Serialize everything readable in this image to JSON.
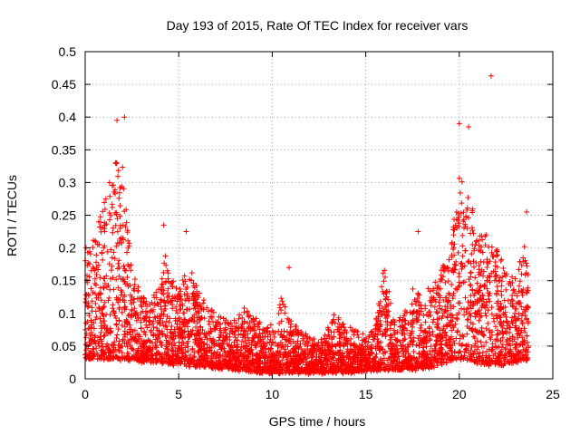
{
  "chart_data": {
    "type": "scatter",
    "title": "Day 193 of 2015, Rate Of TEC Index for receiver vars",
    "xlabel": "GPS time / hours",
    "ylabel": "ROTI / TECUs",
    "xlim": [
      0,
      25
    ],
    "ylim": [
      0,
      0.5
    ],
    "x_ticks": [
      "0",
      "5",
      "10",
      "15",
      "20",
      "25"
    ],
    "y_ticks": [
      "0",
      "0.05",
      "0.1",
      "0.15",
      "0.2",
      "0.25",
      "0.3",
      "0.35",
      "0.4",
      "0.45",
      "0.5"
    ],
    "grid": true,
    "marker": "plus",
    "marker_color": "#ff0000",
    "notable_points": [
      {
        "x": 2.1,
        "y": 0.4
      },
      {
        "x": 1.7,
        "y": 0.395
      },
      {
        "x": 4.2,
        "y": 0.235
      },
      {
        "x": 5.4,
        "y": 0.225
      },
      {
        "x": 10.9,
        "y": 0.17
      },
      {
        "x": 17.8,
        "y": 0.225
      },
      {
        "x": 20.0,
        "y": 0.39
      },
      {
        "x": 20.5,
        "y": 0.385
      },
      {
        "x": 21.7,
        "y": 0.463
      },
      {
        "x": 23.6,
        "y": 0.255
      }
    ],
    "envelope": [
      {
        "x": 0.0,
        "y": 0.22
      },
      {
        "x": 0.5,
        "y": 0.24
      },
      {
        "x": 1.0,
        "y": 0.3
      },
      {
        "x": 1.5,
        "y": 0.37
      },
      {
        "x": 2.0,
        "y": 0.36
      },
      {
        "x": 2.5,
        "y": 0.18
      },
      {
        "x": 3.0,
        "y": 0.14
      },
      {
        "x": 3.5,
        "y": 0.13
      },
      {
        "x": 4.0,
        "y": 0.16
      },
      {
        "x": 4.3,
        "y": 0.21
      },
      {
        "x": 5.0,
        "y": 0.15
      },
      {
        "x": 5.5,
        "y": 0.2
      },
      {
        "x": 6.0,
        "y": 0.15
      },
      {
        "x": 6.5,
        "y": 0.13
      },
      {
        "x": 7.0,
        "y": 0.11
      },
      {
        "x": 7.5,
        "y": 0.1
      },
      {
        "x": 8.0,
        "y": 0.1
      },
      {
        "x": 8.5,
        "y": 0.12
      },
      {
        "x": 9.0,
        "y": 0.11
      },
      {
        "x": 9.5,
        "y": 0.09
      },
      {
        "x": 10.0,
        "y": 0.09
      },
      {
        "x": 10.5,
        "y": 0.14
      },
      {
        "x": 11.0,
        "y": 0.1
      },
      {
        "x": 11.5,
        "y": 0.08
      },
      {
        "x": 12.0,
        "y": 0.07
      },
      {
        "x": 12.5,
        "y": 0.06
      },
      {
        "x": 13.0,
        "y": 0.09
      },
      {
        "x": 13.5,
        "y": 0.12
      },
      {
        "x": 14.0,
        "y": 0.09
      },
      {
        "x": 14.5,
        "y": 0.08
      },
      {
        "x": 15.0,
        "y": 0.07
      },
      {
        "x": 15.5,
        "y": 0.09
      },
      {
        "x": 16.0,
        "y": 0.19
      },
      {
        "x": 16.5,
        "y": 0.1
      },
      {
        "x": 17.0,
        "y": 0.11
      },
      {
        "x": 17.5,
        "y": 0.15
      },
      {
        "x": 18.0,
        "y": 0.14
      },
      {
        "x": 18.5,
        "y": 0.16
      },
      {
        "x": 19.0,
        "y": 0.18
      },
      {
        "x": 19.5,
        "y": 0.22
      },
      {
        "x": 20.0,
        "y": 0.34
      },
      {
        "x": 20.5,
        "y": 0.32
      },
      {
        "x": 21.0,
        "y": 0.25
      },
      {
        "x": 21.5,
        "y": 0.24
      },
      {
        "x": 22.0,
        "y": 0.22
      },
      {
        "x": 22.5,
        "y": 0.18
      },
      {
        "x": 23.0,
        "y": 0.17
      },
      {
        "x": 23.5,
        "y": 0.23
      },
      {
        "x": 23.7,
        "y": 0.2
      }
    ],
    "baseline": [
      {
        "x": 0.0,
        "y": 0.03
      },
      {
        "x": 2.0,
        "y": 0.03
      },
      {
        "x": 4.0,
        "y": 0.025
      },
      {
        "x": 6.0,
        "y": 0.02
      },
      {
        "x": 8.0,
        "y": 0.015
      },
      {
        "x": 10.0,
        "y": 0.01
      },
      {
        "x": 12.0,
        "y": 0.01
      },
      {
        "x": 14.0,
        "y": 0.01
      },
      {
        "x": 16.0,
        "y": 0.015
      },
      {
        "x": 18.0,
        "y": 0.015
      },
      {
        "x": 20.0,
        "y": 0.03
      },
      {
        "x": 22.0,
        "y": 0.02
      },
      {
        "x": 23.7,
        "y": 0.03
      }
    ],
    "x_extent": [
      0,
      23.7
    ]
  }
}
